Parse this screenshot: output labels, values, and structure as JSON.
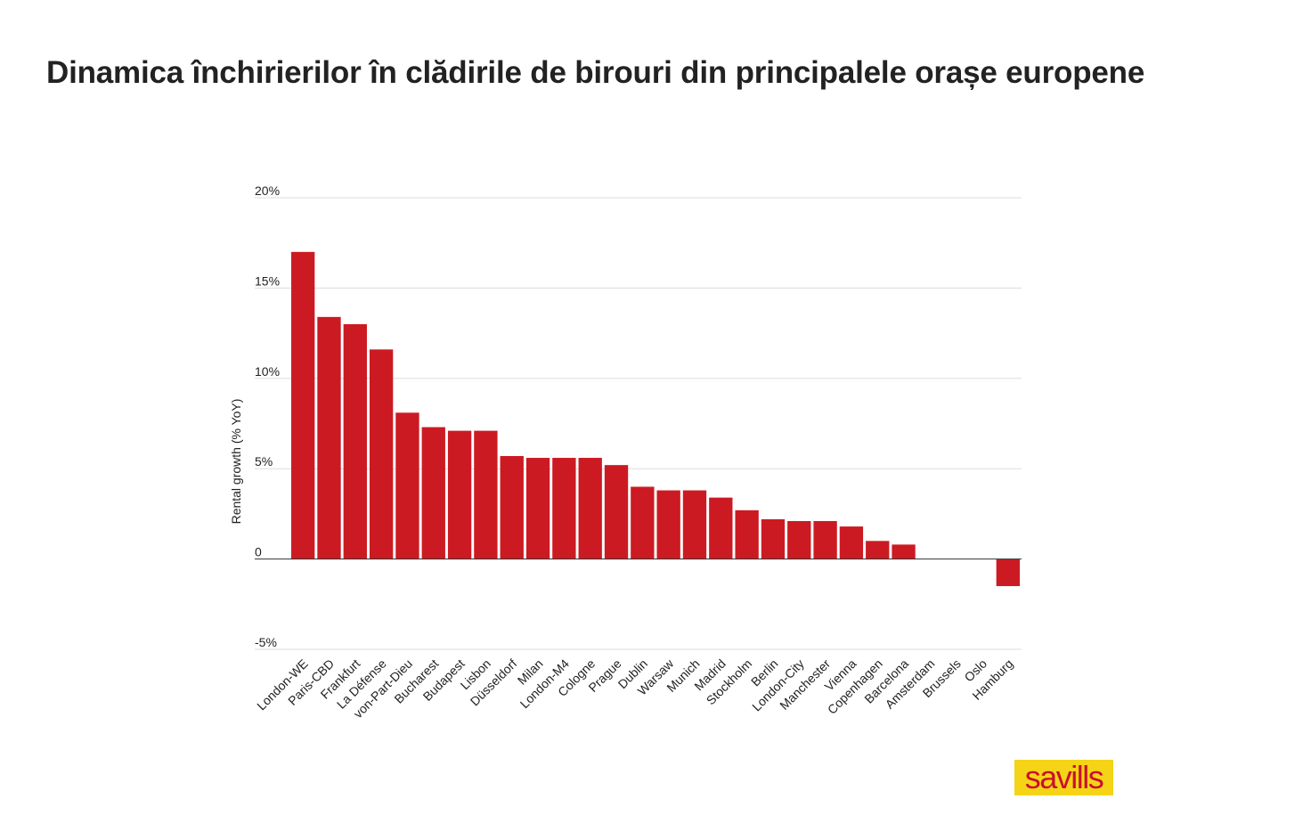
{
  "title": "Dinamica închirierilor în clădirile de birouri din principalele orașe europene",
  "logo": {
    "text": "savills",
    "background": "#f5d316",
    "color": "#c8102e"
  },
  "colors": {
    "bar": "#cc1a22",
    "grid": "#dddddd",
    "zero_line": "#333333",
    "text": "#222222"
  },
  "chart_data": {
    "type": "bar",
    "title": "",
    "xlabel": "",
    "ylabel": "Rental growth (% YoY)",
    "ylim": [
      -5,
      20
    ],
    "grid": true,
    "yticks": [
      {
        "value": 20,
        "label": "20%"
      },
      {
        "value": 15,
        "label": "15%"
      },
      {
        "value": 10,
        "label": "10%"
      },
      {
        "value": 5,
        "label": "5%"
      },
      {
        "value": 0,
        "label": "0"
      },
      {
        "value": -5,
        "label": "-5%"
      }
    ],
    "categories": [
      "London-WE",
      "Paris-CBD",
      "Frankfurt",
      "La Défense",
      "von-Part-Dieu",
      "Bucharest",
      "Budapest",
      "Lisbon",
      "Düsseldorf",
      "Milan",
      "London-M4",
      "Cologne",
      "Prague",
      "Dublin",
      "Warsaw",
      "Munich",
      "Madrid",
      "Stockholm",
      "Berlin",
      "London-City",
      "Manchester",
      "Vienna",
      "Copenhagen",
      "Barcelona",
      "Amsterdam",
      "Brussels",
      "Oslo",
      "Hamburg"
    ],
    "values": [
      17.0,
      13.4,
      13.0,
      11.6,
      8.1,
      7.3,
      7.1,
      7.1,
      5.7,
      5.6,
      5.6,
      5.6,
      5.2,
      4.0,
      3.8,
      3.8,
      3.4,
      2.7,
      2.2,
      2.1,
      2.1,
      1.8,
      1.0,
      0.8,
      0,
      0,
      0,
      -1.5
    ]
  }
}
